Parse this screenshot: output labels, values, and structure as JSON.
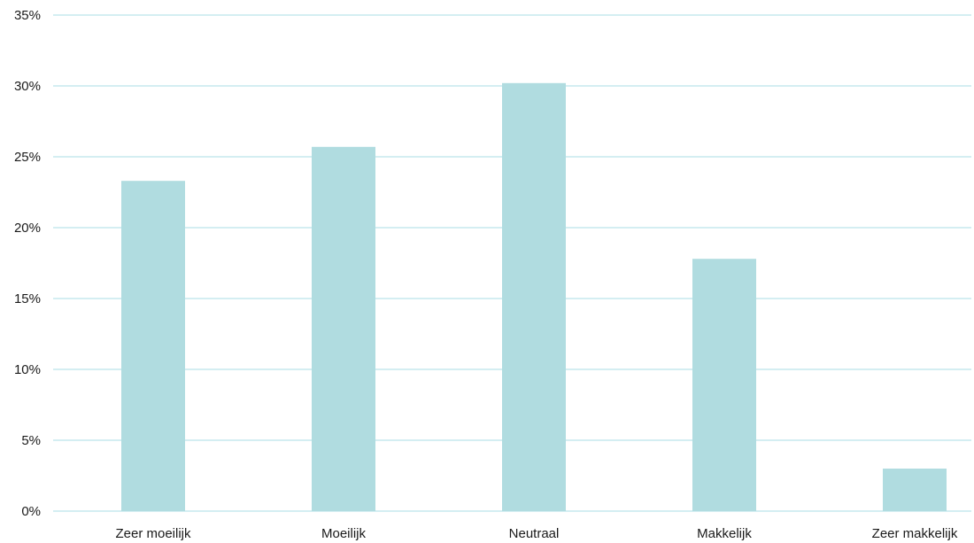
{
  "chart_data": {
    "type": "bar",
    "categories": [
      "Zeer moeilijk",
      "Moeilijk",
      "Neutraal",
      "Makkelijk",
      "Zeer makkelijk"
    ],
    "values": [
      23.3,
      25.7,
      30.2,
      17.8,
      3.0
    ],
    "yticks": [
      "0%",
      "5%",
      "10%",
      "15%",
      "20%",
      "25%",
      "30%",
      "35%"
    ],
    "ylim": [
      0,
      35
    ],
    "grid": true,
    "title": "",
    "xlabel": "",
    "ylabel": "",
    "colors": {
      "bar": "#b0dce0",
      "grid": "#d4eef2",
      "text": "#1a1a1a"
    }
  }
}
